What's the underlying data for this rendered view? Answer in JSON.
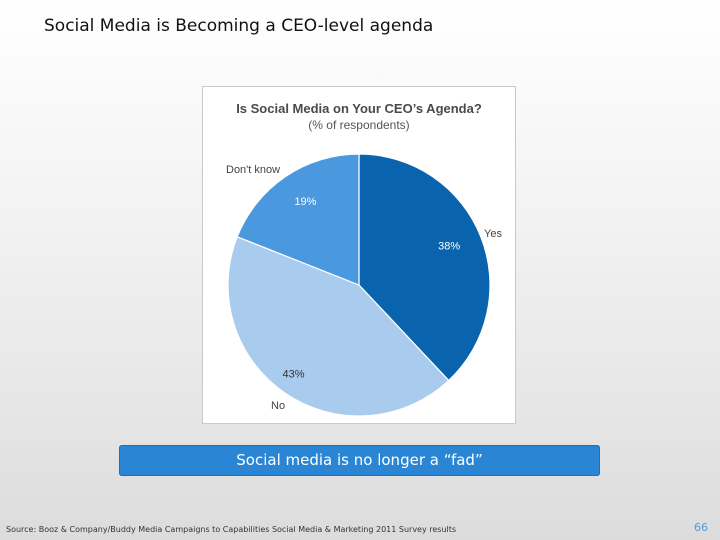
{
  "slide": {
    "title": "Social Media is Becoming a CEO-level agenda",
    "banner": "Social media is no longer a “fad”",
    "source": "Source: Booz & Company/Buddy Media Campaigns to Capabilities Social Media & Marketing 2011 Survey results",
    "page_number": "66"
  },
  "chart_data": {
    "type": "pie",
    "title": "Is Social Media on Your CEO’s Agenda?",
    "subtitle": "(% of respondents)",
    "slices": [
      {
        "label": "Yes",
        "value": 38,
        "value_label": "38%",
        "color": "#0a64ad"
      },
      {
        "label": "No",
        "value": 43,
        "value_label": "43%",
        "color": "#a8cbee"
      },
      {
        "label": "Don't know",
        "value": 19,
        "value_label": "19%",
        "color": "#4a98dd"
      }
    ],
    "start": "top",
    "direction": "clockwise"
  }
}
